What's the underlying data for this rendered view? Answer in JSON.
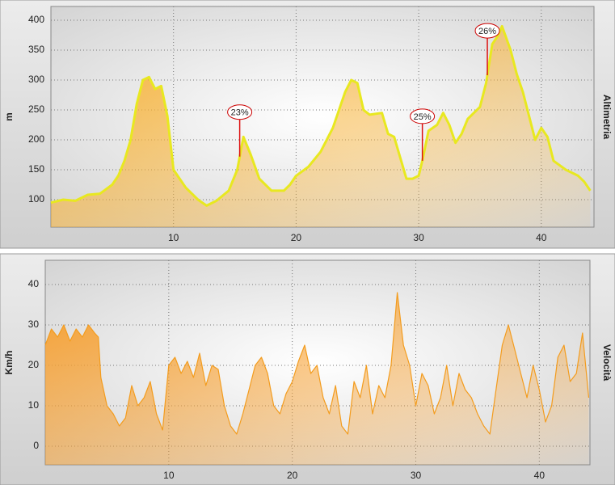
{
  "chart_data": [
    {
      "type": "area",
      "y_label": "m",
      "side_label": "Altimetria",
      "x": [
        0,
        1,
        2,
        3,
        4,
        5,
        5.5,
        6,
        6.5,
        7,
        7.5,
        8,
        8.5,
        9,
        9.5,
        10,
        10.5,
        11,
        12,
        12.7,
        13.5,
        14.5,
        15.2,
        15.7,
        16.3,
        17,
        18,
        19,
        19.5,
        20,
        21,
        22,
        23,
        24,
        24.5,
        25,
        25.5,
        26,
        27,
        27.5,
        28,
        28.5,
        29,
        29.5,
        30,
        30.3,
        30.8,
        31.5,
        32,
        32.5,
        33,
        33.5,
        34,
        35,
        35.5,
        36,
        36.5,
        36.8,
        37.5,
        38,
        38.5,
        39,
        39.5,
        40,
        40.5,
        41,
        42,
        43,
        43.5,
        44
      ],
      "series": [
        {
          "color": "#e8e820",
          "fill_color": "#f9b233",
          "values": [
            95,
            100,
            98,
            108,
            110,
            125,
            140,
            165,
            200,
            260,
            300,
            305,
            285,
            290,
            240,
            150,
            135,
            120,
            100,
            90,
            98,
            115,
            150,
            205,
            175,
            135,
            115,
            115,
            125,
            140,
            155,
            180,
            220,
            280,
            300,
            295,
            250,
            242,
            245,
            210,
            205,
            170,
            135,
            135,
            140,
            165,
            215,
            225,
            245,
            225,
            195,
            210,
            235,
            255,
            295,
            360,
            375,
            390,
            350,
            310,
            280,
            240,
            200,
            220,
            205,
            165,
            150,
            140,
            130,
            115
          ]
        }
      ],
      "xlim": [
        0,
        44.3
      ],
      "ylim": [
        54,
        423
      ],
      "xticks": [
        10,
        20,
        30,
        40
      ],
      "yticks": [
        100,
        150,
        200,
        250,
        300,
        350,
        400
      ],
      "grid": true,
      "annotations": [
        {
          "text": "23%",
          "x": 15.4
        },
        {
          "text": "25%",
          "x": 30.3
        },
        {
          "text": "26%",
          "x": 35.6
        }
      ]
    },
    {
      "type": "area",
      "y_label": "Km/h",
      "side_label": "Velocità",
      "x": [
        0,
        0.5,
        1,
        1.5,
        2,
        2.5,
        3,
        3.5,
        4,
        4.3,
        4.5,
        5,
        5.5,
        6,
        6.5,
        7,
        7.5,
        8,
        8.5,
        9,
        9.5,
        10,
        10.5,
        11,
        11.5,
        12,
        12.5,
        13,
        13.5,
        14,
        14.5,
        15,
        15.5,
        16,
        16.5,
        17,
        17.5,
        18,
        18.5,
        19,
        19.5,
        20,
        20.5,
        21,
        21.5,
        22,
        22.5,
        23,
        23.5,
        24,
        24.5,
        25,
        25.5,
        26,
        26.5,
        27,
        27.5,
        28,
        28.5,
        29,
        29.5,
        30,
        30.5,
        31,
        31.5,
        32,
        32.5,
        33,
        33.5,
        34,
        34.5,
        35,
        35.5,
        36,
        36.5,
        37,
        37.5,
        38,
        38.5,
        39,
        39.5,
        40,
        40.5,
        41,
        41.5,
        42,
        42.5,
        43,
        43.5,
        44
      ],
      "series": [
        {
          "color": "#f39c1e",
          "fill_color": "#f7a030",
          "values": [
            25,
            29,
            27,
            30,
            26,
            29,
            27,
            30,
            28,
            27,
            17,
            10,
            8,
            5,
            7,
            15,
            10,
            12,
            16,
            8,
            4,
            20,
            22,
            18,
            21,
            17,
            23,
            15,
            20,
            19,
            10,
            5,
            3,
            8,
            14,
            20,
            22,
            18,
            10,
            8,
            13,
            16,
            21,
            25,
            18,
            20,
            12,
            8,
            15,
            5,
            3,
            16,
            12,
            20,
            8,
            15,
            12,
            20,
            38,
            25,
            20,
            10,
            18,
            15,
            8,
            12,
            20,
            10,
            18,
            14,
            12,
            8,
            5,
            3,
            14,
            25,
            30,
            24,
            18,
            12,
            20,
            14,
            6,
            10,
            22,
            25,
            16,
            18,
            28,
            12
          ]
        }
      ],
      "xlim": [
        0,
        44.1
      ],
      "ylim": [
        -4.6,
        46
      ],
      "xticks": [
        10,
        20,
        30,
        40
      ],
      "yticks": [
        0,
        10,
        20,
        30,
        40
      ],
      "grid": true
    }
  ]
}
